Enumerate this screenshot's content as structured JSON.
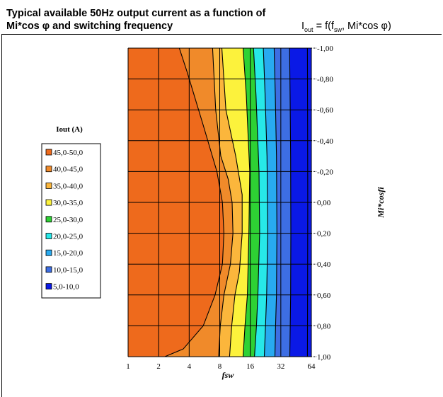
{
  "title_line1": "Typical available 50Hz output current as a function of",
  "title_line2": "Mi*cos φ and switching frequency",
  "formula": {
    "lhs": "I",
    "sub1": "out",
    "mid": " = f(f",
    "sub2": "sw",
    "rhs": ", Mi*cos φ)"
  },
  "chart_data": {
    "type": "heatmap",
    "title": "Typical available 50Hz output current as a function of Mi*cos φ and switching frequency",
    "xlabel": "fsw",
    "ylabel": "Mi*cosfi",
    "x_scale": "log2",
    "x_ticks": [
      "1",
      "2",
      "4",
      "8",
      "16",
      "32",
      "64"
    ],
    "y_ticks": [
      "-1,00",
      "-0,80",
      "-0,60",
      "-0,40",
      "-0,20",
      "0,00",
      "0,20",
      "0,40",
      "0,60",
      "0,80",
      "1,00"
    ],
    "xlim": [
      1,
      64
    ],
    "ylim": [
      -1,
      1
    ],
    "legend_title": "Iout (A)",
    "legend": [
      {
        "label": "45,0-50,0",
        "color": "#ee6a1c"
      },
      {
        "label": "40,0-45,0",
        "color": "#f08a2a"
      },
      {
        "label": "35,0-40,0",
        "color": "#fbb63c"
      },
      {
        "label": "30,0-35,0",
        "color": "#fcf23c"
      },
      {
        "label": "25,0-30,0",
        "color": "#2ed134"
      },
      {
        "label": "20,0-25,0",
        "color": "#27e8e8"
      },
      {
        "label": "15,0-20,0",
        "color": "#28aaf0"
      },
      {
        "label": "10,0-15,0",
        "color": "#3d6ee3"
      },
      {
        "label": "5,0-10,0",
        "color": "#0a19e6"
      }
    ],
    "contour_boundaries": [
      {
        "level": 45,
        "points": [
          [
            3.2,
            -1.0
          ],
          [
            3.8,
            -0.85
          ],
          [
            5.5,
            -0.5
          ],
          [
            7.5,
            -0.2
          ],
          [
            8.5,
            0.0
          ],
          [
            8.8,
            0.2
          ],
          [
            8.5,
            0.4
          ],
          [
            7.2,
            0.6
          ],
          [
            5.5,
            0.8
          ],
          [
            3.5,
            0.95
          ],
          [
            2.3,
            1.0
          ]
        ]
      },
      {
        "level": 40,
        "points": [
          [
            6.8,
            -1.0
          ],
          [
            7.3,
            -0.6
          ],
          [
            8.2,
            -0.3
          ],
          [
            9.7,
            -0.15
          ],
          [
            10.6,
            0.0
          ],
          [
            10.8,
            0.2
          ],
          [
            10.2,
            0.4
          ],
          [
            8.8,
            0.6
          ],
          [
            8.1,
            0.8
          ],
          [
            7.8,
            1.0
          ]
        ]
      },
      {
        "level": 35,
        "points": [
          [
            8.4,
            -1.0
          ],
          [
            9.2,
            -0.6
          ],
          [
            11.5,
            -0.3
          ],
          [
            13.3,
            -0.05
          ],
          [
            13.3,
            0.2
          ],
          [
            12.5,
            0.45
          ],
          [
            11.3,
            0.6
          ],
          [
            10.5,
            0.8
          ],
          [
            10.0,
            1.0
          ]
        ]
      },
      {
        "level": 30,
        "points": [
          [
            13.6,
            -1.0
          ],
          [
            14.6,
            -0.7
          ],
          [
            15.8,
            -0.2
          ],
          [
            15.5,
            0.2
          ],
          [
            15.0,
            0.6
          ],
          [
            14.2,
            0.8
          ],
          [
            13.6,
            1.0
          ]
        ]
      },
      {
        "level": 25,
        "points": [
          [
            17.2,
            -1.0
          ],
          [
            18.2,
            -0.7
          ],
          [
            19.5,
            -0.2
          ],
          [
            19.8,
            0.2
          ],
          [
            19.0,
            0.6
          ],
          [
            18.4,
            0.8
          ],
          [
            17.6,
            1.0
          ]
        ]
      },
      {
        "level": 20,
        "points": [
          [
            21.5,
            -1.0
          ],
          [
            22.4,
            -0.7
          ],
          [
            23.4,
            -0.3
          ],
          [
            23.8,
            0.2
          ],
          [
            23.2,
            0.6
          ],
          [
            22.6,
            0.8
          ],
          [
            22.0,
            1.0
          ]
        ]
      },
      {
        "level": 15,
        "points": [
          [
            27.5,
            -1.0
          ],
          [
            28.2,
            -0.7
          ],
          [
            29.0,
            -0.3
          ],
          [
            29.3,
            0.2
          ],
          [
            29.0,
            0.6
          ],
          [
            28.4,
            0.8
          ],
          [
            28.0,
            1.0
          ]
        ]
      },
      {
        "level": 10,
        "points": [
          [
            39.0,
            -1.0
          ],
          [
            39.5,
            -0.7
          ],
          [
            40.0,
            -0.3
          ],
          [
            40.2,
            0.2
          ],
          [
            40.0,
            0.6
          ],
          [
            39.6,
            0.8
          ],
          [
            39.2,
            1.0
          ]
        ]
      },
      {
        "level": 5,
        "points": [
          [
            58.5,
            -1.0
          ],
          [
            58.8,
            -0.5
          ],
          [
            59.0,
            0.0
          ],
          [
            58.8,
            0.5
          ],
          [
            58.5,
            1.0
          ]
        ]
      }
    ],
    "grid": true
  }
}
